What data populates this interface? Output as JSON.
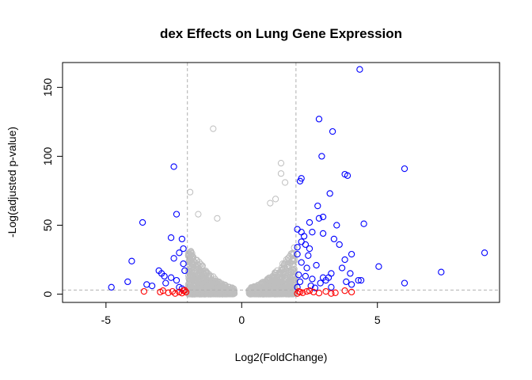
{
  "chart_data": {
    "type": "scatter",
    "title": "dex Effects on Lung Gene Expression",
    "xlabel": "Log2(FoldChange)",
    "ylabel": "-Log(adjusted p-value)",
    "xlim": [
      -6.6,
      9.5
    ],
    "ylim": [
      -6,
      168
    ],
    "x_ticks": [
      "-5",
      "0",
      "5"
    ],
    "x_tick_values": [
      -5,
      0,
      5
    ],
    "y_ticks": [
      "0",
      "50",
      "100",
      "150"
    ],
    "y_tick_values": [
      0,
      50,
      100,
      150
    ],
    "grid": false,
    "legend": "none",
    "thresholds": {
      "vertical": [
        -2,
        2
      ],
      "horizontal": [
        3
      ],
      "line_color": "#b0b0b0"
    },
    "colors": {
      "not_significant": "#bebebe",
      "significant": "#0000ff",
      "large_fc_not_significant": "#ff0000"
    },
    "series": [
      {
        "color": "#0000ff",
        "points": [
          [
            4.35,
            163
          ],
          [
            2.85,
            127
          ],
          [
            3.35,
            118
          ],
          [
            2.95,
            100
          ],
          [
            -2.5,
            92.5
          ],
          [
            6.0,
            91
          ],
          [
            3.8,
            87
          ],
          [
            3.9,
            86
          ],
          [
            2.2,
            84
          ],
          [
            2.15,
            82
          ],
          [
            3.25,
            73
          ],
          [
            2.8,
            64
          ],
          [
            -2.4,
            58
          ],
          [
            3.0,
            56
          ],
          [
            2.85,
            55
          ],
          [
            -3.65,
            52
          ],
          [
            4.5,
            51
          ],
          [
            2.5,
            52
          ],
          [
            3.5,
            50
          ],
          [
            2.05,
            47
          ],
          [
            2.2,
            45
          ],
          [
            3.0,
            44
          ],
          [
            2.6,
            45
          ],
          [
            2.3,
            42
          ],
          [
            -2.6,
            41
          ],
          [
            -2.2,
            40
          ],
          [
            3.4,
            40
          ],
          [
            4.05,
            29
          ],
          [
            2.2,
            38
          ],
          [
            2.35,
            36
          ],
          [
            2.5,
            33
          ],
          [
            2.05,
            34
          ],
          [
            -2.15,
            33
          ],
          [
            -2.3,
            30
          ],
          [
            3.6,
            36
          ],
          [
            2.05,
            29
          ],
          [
            -2.5,
            26
          ],
          [
            3.8,
            25
          ],
          [
            8.95,
            30
          ],
          [
            -4.05,
            24
          ],
          [
            2.2,
            23
          ],
          [
            2.75,
            21
          ],
          [
            -2.15,
            22
          ],
          [
            5.05,
            20
          ],
          [
            2.4,
            19
          ],
          [
            -3.05,
            17
          ],
          [
            3.7,
            19
          ],
          [
            -2.95,
            15
          ],
          [
            2.1,
            14
          ],
          [
            3.3,
            15
          ],
          [
            4.0,
            15
          ],
          [
            2.35,
            13
          ],
          [
            7.35,
            16
          ],
          [
            4.3,
            10
          ],
          [
            -2.6,
            12
          ],
          [
            -2.4,
            10
          ],
          [
            4.4,
            10
          ],
          [
            2.15,
            9
          ],
          [
            3.1,
            10
          ],
          [
            3.85,
            9
          ],
          [
            6.0,
            8
          ],
          [
            2.9,
            8
          ],
          [
            -2.8,
            8
          ],
          [
            -4.2,
            9
          ],
          [
            4.05,
            7
          ],
          [
            -3.5,
            7
          ],
          [
            -3.3,
            6
          ],
          [
            -4.8,
            5
          ],
          [
            2.55,
            6
          ],
          [
            -2.3,
            5
          ],
          [
            3.3,
            5
          ],
          [
            2.7,
            4.5
          ],
          [
            -2.2,
            4
          ],
          [
            3.0,
            12
          ],
          [
            2.6,
            11
          ],
          [
            -2.85,
            13
          ],
          [
            2.45,
            28
          ],
          [
            3.2,
            12
          ],
          [
            -2.1,
            17
          ],
          [
            2.05,
            5
          ]
        ]
      },
      {
        "color": "#ff0000",
        "points": [
          [
            -3.6,
            2
          ],
          [
            -3.0,
            1.5
          ],
          [
            -2.7,
            1
          ],
          [
            -2.3,
            1.5
          ],
          [
            -2.45,
            0.5
          ],
          [
            -2.15,
            2.5
          ],
          [
            -2.9,
            2.5
          ],
          [
            -2.55,
            2
          ],
          [
            -2.2,
            0.8
          ],
          [
            -2.05,
            1.5
          ],
          [
            2.1,
            2
          ],
          [
            2.25,
            1
          ],
          [
            2.5,
            2.5
          ],
          [
            2.65,
            1.5
          ],
          [
            2.85,
            0.8
          ],
          [
            3.1,
            2
          ],
          [
            3.45,
            1
          ],
          [
            3.8,
            2.5
          ],
          [
            2.15,
            1.5
          ],
          [
            2.4,
            2
          ],
          [
            4.05,
            1.5
          ],
          [
            3.3,
            0.5
          ],
          [
            2.05,
            0.5
          ],
          [
            -2.1,
            2.8
          ]
        ]
      }
    ]
  }
}
